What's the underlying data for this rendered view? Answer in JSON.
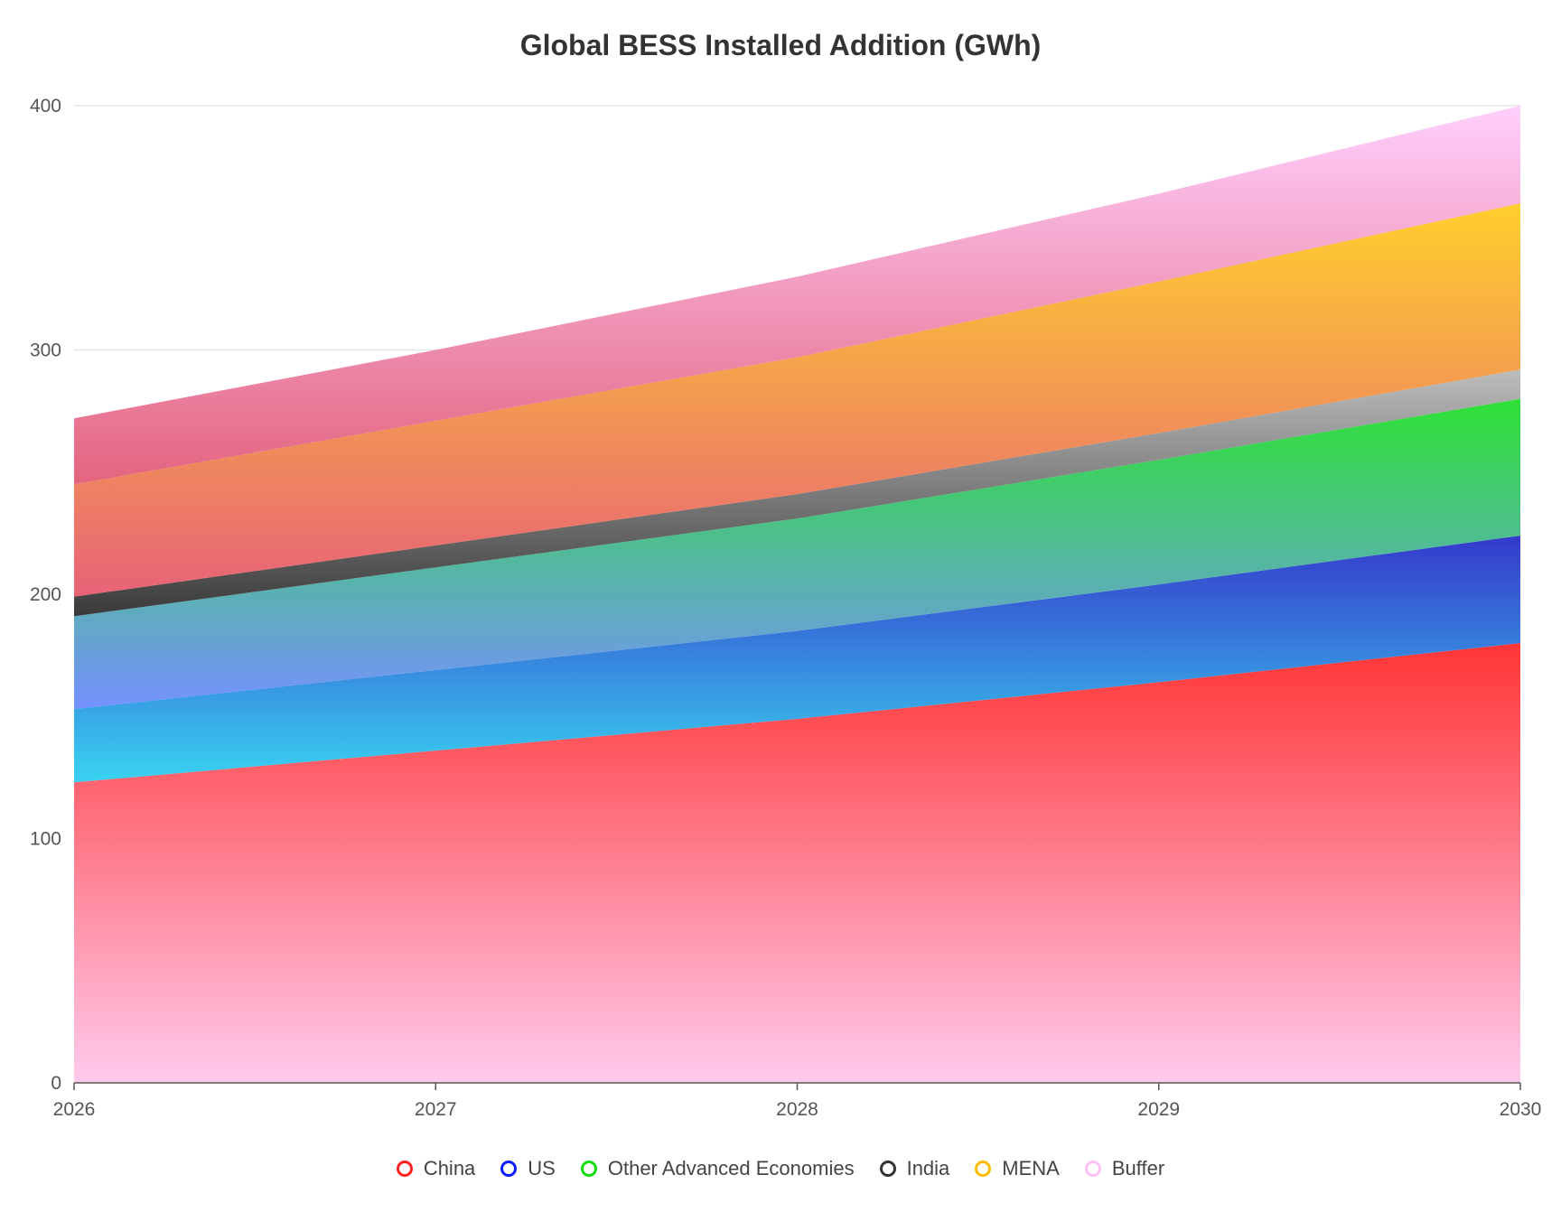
{
  "chart_data": {
    "type": "area",
    "stacked": true,
    "title": "Global BESS Installed Addition (GWh)",
    "x": [
      "2026",
      "2027",
      "2028",
      "2029",
      "2030"
    ],
    "ylim": [
      0,
      400
    ],
    "yticks": [
      "0",
      "100",
      "200",
      "300",
      "400"
    ],
    "grid": true,
    "legend_position": "bottom",
    "series": [
      {
        "name": "China",
        "values": [
          123,
          136,
          149,
          164,
          180
        ],
        "color": "#ff2020",
        "gradient": [
          "#ff2a2a",
          "#ffc8ec"
        ]
      },
      {
        "name": "US",
        "values": [
          30,
          33,
          36,
          40,
          44
        ],
        "color": "#0a1cff",
        "gradient": [
          "#2a2fc8",
          "#2fd0f0"
        ]
      },
      {
        "name": "Other Advanced Economies",
        "values": [
          38,
          42,
          46,
          51,
          56
        ],
        "color": "#11dd11",
        "gradient": [
          "#22e02a",
          "#6f8cff"
        ]
      },
      {
        "name": "India",
        "values": [
          8,
          9,
          10,
          11,
          12
        ],
        "color": "#333333",
        "gradient": [
          "#b9b9b9",
          "#2f2f2f"
        ]
      },
      {
        "name": "MENA",
        "values": [
          46,
          51,
          56,
          62,
          68
        ],
        "color": "#ffbb00",
        "gradient": [
          "#ffcc22",
          "#e65a70"
        ]
      },
      {
        "name": "Buffer",
        "values": [
          27,
          29,
          33,
          36,
          40
        ],
        "color": "#ffc0f4",
        "gradient": [
          "#ffcdfc",
          "#e25c78"
        ]
      }
    ]
  }
}
